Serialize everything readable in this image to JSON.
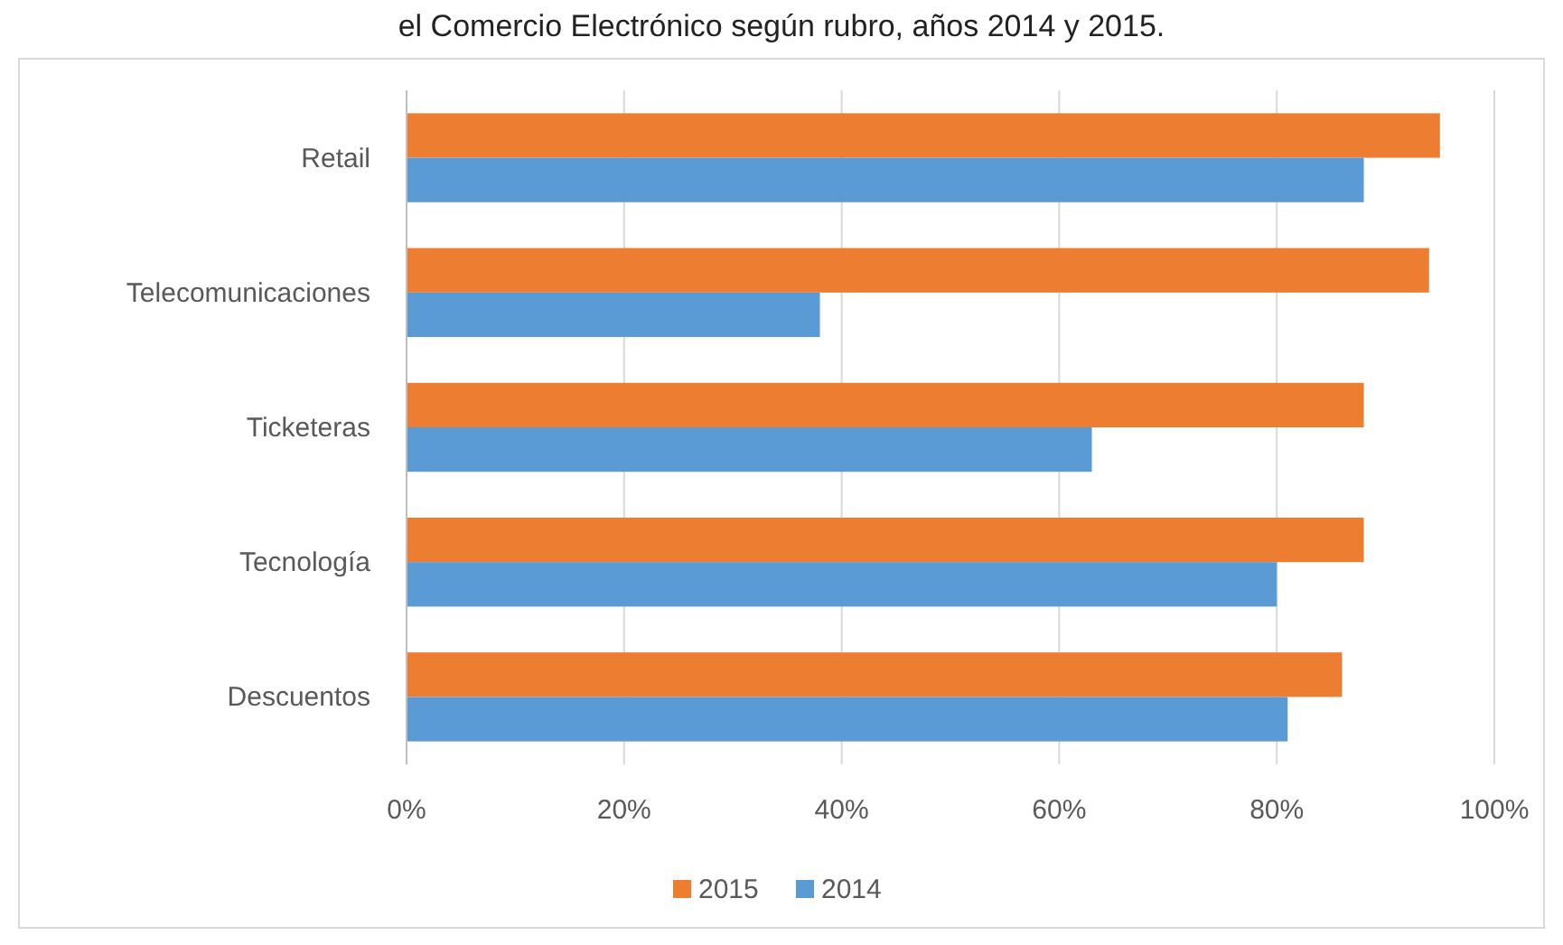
{
  "chart_data": {
    "type": "bar",
    "orientation": "horizontal",
    "title": "el Comercio Electrónico según rubro, años 2014 y 2015.",
    "categories": [
      "Retail",
      "Telecomunicaciones",
      "Ticketeras",
      "Tecnología",
      "Descuentos"
    ],
    "series": [
      {
        "name": "2015",
        "color": "#ed7d31",
        "values": [
          95,
          94,
          88,
          88,
          86
        ]
      },
      {
        "name": "2014",
        "color": "#5b9bd5",
        "values": [
          88,
          38,
          63,
          80,
          81
        ]
      }
    ],
    "xlim": [
      0,
      100
    ],
    "xticks": [
      {
        "value": 0,
        "label": "0%"
      },
      {
        "value": 20,
        "label": "20%"
      },
      {
        "value": 40,
        "label": "40%"
      },
      {
        "value": 60,
        "label": "60%"
      },
      {
        "value": 80,
        "label": "80%"
      },
      {
        "value": 100,
        "label": "100%"
      }
    ],
    "grid": "x",
    "legend": "bottom"
  }
}
